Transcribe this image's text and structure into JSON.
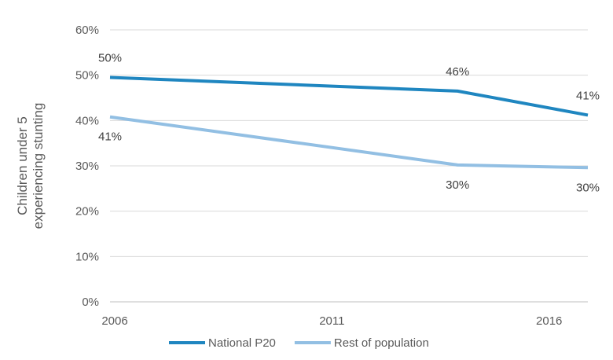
{
  "chart_data": {
    "type": "line",
    "title": "",
    "xlabel": "",
    "ylabel_lines": [
      "Children under 5",
      "experiencing stunting"
    ],
    "ylim": [
      0,
      0.6
    ],
    "yticks": [
      0,
      0.1,
      0.2,
      0.3,
      0.4,
      0.5,
      0.6
    ],
    "ytick_labels": [
      "0%",
      "10%",
      "20%",
      "30%",
      "40%",
      "50%",
      "60%"
    ],
    "xlim": [
      2006,
      2017
    ],
    "xticks": [
      2006,
      2011,
      2016
    ],
    "xtick_labels": [
      "2006",
      "2011",
      "2016"
    ],
    "grid": true,
    "legend_position": "bottom",
    "series": [
      {
        "name": "National P20",
        "color": "#1f86c0",
        "x": [
          2006,
          2014,
          2017
        ],
        "y": [
          0.495,
          0.465,
          0.412
        ],
        "labels": [
          "50%",
          "46%",
          "41%"
        ],
        "label_side": "above"
      },
      {
        "name": "Rest of population",
        "color": "#92bfe3",
        "x": [
          2006,
          2014,
          2017
        ],
        "y": [
          0.408,
          0.302,
          0.296
        ],
        "labels": [
          "41%",
          "30%",
          "30%"
        ],
        "label_side": "below"
      }
    ]
  }
}
